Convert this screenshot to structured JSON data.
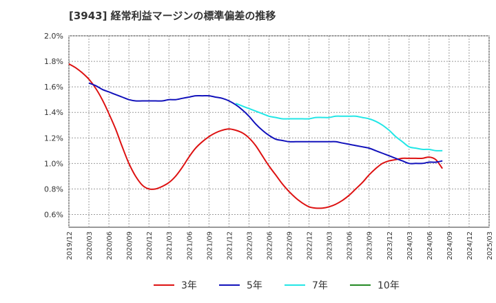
{
  "chart_data": {
    "type": "line",
    "title": "[3943]  経常利益マージンの標準偏差の推移",
    "xlabel": "",
    "ylabel": "",
    "ylim": [
      0.5,
      2.0
    ],
    "y_ticks": [
      "2.0%",
      "1.8%",
      "1.6%",
      "1.4%",
      "1.2%",
      "1.0%",
      "0.8%",
      "0.6%"
    ],
    "y_tick_values": [
      2.0,
      1.8,
      1.6,
      1.4,
      1.2,
      1.0,
      0.8,
      0.6
    ],
    "x_ticks": [
      "2019/12",
      "2020/03",
      "2020/06",
      "2020/09",
      "2020/12",
      "2021/03",
      "2021/06",
      "2021/09",
      "2021/12",
      "2022/03",
      "2022/06",
      "2022/09",
      "2022/12",
      "2023/03",
      "2023/06",
      "2023/09",
      "2023/12",
      "2024/03",
      "2024/06",
      "2024/09",
      "2024/12",
      "2025/03"
    ],
    "grid": true,
    "legend_position": "bottom",
    "series": [
      {
        "name": "3年",
        "color": "#dd1111",
        "points": [
          [
            "2019/12",
            1.78
          ],
          [
            "2020/01",
            1.75
          ],
          [
            "2020/02",
            1.71
          ],
          [
            "2020/03",
            1.66
          ],
          [
            "2020/04",
            1.59
          ],
          [
            "2020/05",
            1.5
          ],
          [
            "2020/06",
            1.39
          ],
          [
            "2020/07",
            1.27
          ],
          [
            "2020/08",
            1.13
          ],
          [
            "2020/09",
            1.0
          ],
          [
            "2020/10",
            0.9
          ],
          [
            "2020/11",
            0.83
          ],
          [
            "2020/12",
            0.8
          ],
          [
            "2021/01",
            0.8
          ],
          [
            "2021/02",
            0.82
          ],
          [
            "2021/03",
            0.85
          ],
          [
            "2021/04",
            0.9
          ],
          [
            "2021/05",
            0.97
          ],
          [
            "2021/06",
            1.05
          ],
          [
            "2021/07",
            1.12
          ],
          [
            "2021/08",
            1.17
          ],
          [
            "2021/09",
            1.21
          ],
          [
            "2021/10",
            1.24
          ],
          [
            "2021/11",
            1.26
          ],
          [
            "2021/12",
            1.27
          ],
          [
            "2022/01",
            1.26
          ],
          [
            "2022/02",
            1.24
          ],
          [
            "2022/03",
            1.2
          ],
          [
            "2022/04",
            1.14
          ],
          [
            "2022/05",
            1.06
          ],
          [
            "2022/06",
            0.98
          ],
          [
            "2022/07",
            0.91
          ],
          [
            "2022/08",
            0.84
          ],
          [
            "2022/09",
            0.78
          ],
          [
            "2022/10",
            0.73
          ],
          [
            "2022/11",
            0.69
          ],
          [
            "2022/12",
            0.66
          ],
          [
            "2023/01",
            0.65
          ],
          [
            "2023/02",
            0.65
          ],
          [
            "2023/03",
            0.66
          ],
          [
            "2023/04",
            0.68
          ],
          [
            "2023/05",
            0.71
          ],
          [
            "2023/06",
            0.75
          ],
          [
            "2023/07",
            0.8
          ],
          [
            "2023/08",
            0.85
          ],
          [
            "2023/09",
            0.91
          ],
          [
            "2023/10",
            0.96
          ],
          [
            "2023/11",
            1.0
          ],
          [
            "2023/12",
            1.02
          ],
          [
            "2024/01",
            1.03
          ],
          [
            "2024/02",
            1.04
          ],
          [
            "2024/03",
            1.04
          ],
          [
            "2024/04",
            1.04
          ],
          [
            "2024/05",
            1.04
          ],
          [
            "2024/06",
            1.05
          ],
          [
            "2024/07",
            1.03
          ],
          [
            "2024/08",
            0.96
          ]
        ]
      },
      {
        "name": "5年",
        "color": "#1111bb",
        "points": [
          [
            "2020/03",
            1.63
          ],
          [
            "2020/04",
            1.61
          ],
          [
            "2020/05",
            1.58
          ],
          [
            "2020/06",
            1.56
          ],
          [
            "2020/07",
            1.54
          ],
          [
            "2020/08",
            1.52
          ],
          [
            "2020/09",
            1.5
          ],
          [
            "2020/10",
            1.49
          ],
          [
            "2020/11",
            1.49
          ],
          [
            "2020/12",
            1.49
          ],
          [
            "2021/01",
            1.49
          ],
          [
            "2021/02",
            1.49
          ],
          [
            "2021/03",
            1.5
          ],
          [
            "2021/04",
            1.5
          ],
          [
            "2021/05",
            1.51
          ],
          [
            "2021/06",
            1.52
          ],
          [
            "2021/07",
            1.53
          ],
          [
            "2021/08",
            1.53
          ],
          [
            "2021/09",
            1.53
          ],
          [
            "2021/10",
            1.52
          ],
          [
            "2021/11",
            1.51
          ],
          [
            "2021/12",
            1.49
          ],
          [
            "2022/01",
            1.46
          ],
          [
            "2022/02",
            1.42
          ],
          [
            "2022/03",
            1.37
          ],
          [
            "2022/04",
            1.31
          ],
          [
            "2022/05",
            1.26
          ],
          [
            "2022/06",
            1.22
          ],
          [
            "2022/07",
            1.19
          ],
          [
            "2022/08",
            1.18
          ],
          [
            "2022/09",
            1.17
          ],
          [
            "2022/10",
            1.17
          ],
          [
            "2022/11",
            1.17
          ],
          [
            "2022/12",
            1.17
          ],
          [
            "2023/01",
            1.17
          ],
          [
            "2023/02",
            1.17
          ],
          [
            "2023/03",
            1.17
          ],
          [
            "2023/04",
            1.17
          ],
          [
            "2023/05",
            1.16
          ],
          [
            "2023/06",
            1.15
          ],
          [
            "2023/07",
            1.14
          ],
          [
            "2023/08",
            1.13
          ],
          [
            "2023/09",
            1.12
          ],
          [
            "2023/10",
            1.1
          ],
          [
            "2023/11",
            1.08
          ],
          [
            "2023/12",
            1.06
          ],
          [
            "2024/01",
            1.04
          ],
          [
            "2024/02",
            1.02
          ],
          [
            "2024/03",
            1.0
          ],
          [
            "2024/04",
            1.0
          ],
          [
            "2024/05",
            1.0
          ],
          [
            "2024/06",
            1.01
          ],
          [
            "2024/07",
            1.01
          ],
          [
            "2024/08",
            1.02
          ]
        ]
      },
      {
        "name": "7年",
        "color": "#22e6e6",
        "points": [
          [
            "2022/01",
            1.47
          ],
          [
            "2022/02",
            1.45
          ],
          [
            "2022/03",
            1.43
          ],
          [
            "2022/04",
            1.41
          ],
          [
            "2022/05",
            1.39
          ],
          [
            "2022/06",
            1.37
          ],
          [
            "2022/07",
            1.36
          ],
          [
            "2022/08",
            1.35
          ],
          [
            "2022/09",
            1.35
          ],
          [
            "2022/10",
            1.35
          ],
          [
            "2022/11",
            1.35
          ],
          [
            "2022/12",
            1.35
          ],
          [
            "2023/01",
            1.36
          ],
          [
            "2023/02",
            1.36
          ],
          [
            "2023/03",
            1.36
          ],
          [
            "2023/04",
            1.37
          ],
          [
            "2023/05",
            1.37
          ],
          [
            "2023/06",
            1.37
          ],
          [
            "2023/07",
            1.37
          ],
          [
            "2023/08",
            1.36
          ],
          [
            "2023/09",
            1.35
          ],
          [
            "2023/10",
            1.33
          ],
          [
            "2023/11",
            1.3
          ],
          [
            "2023/12",
            1.26
          ],
          [
            "2024/01",
            1.21
          ],
          [
            "2024/02",
            1.17
          ],
          [
            "2024/03",
            1.13
          ],
          [
            "2024/04",
            1.12
          ],
          [
            "2024/05",
            1.11
          ],
          [
            "2024/06",
            1.11
          ],
          [
            "2024/07",
            1.1
          ],
          [
            "2024/08",
            1.1
          ]
        ]
      },
      {
        "name": "10年",
        "color": "#228822",
        "points": []
      }
    ]
  }
}
